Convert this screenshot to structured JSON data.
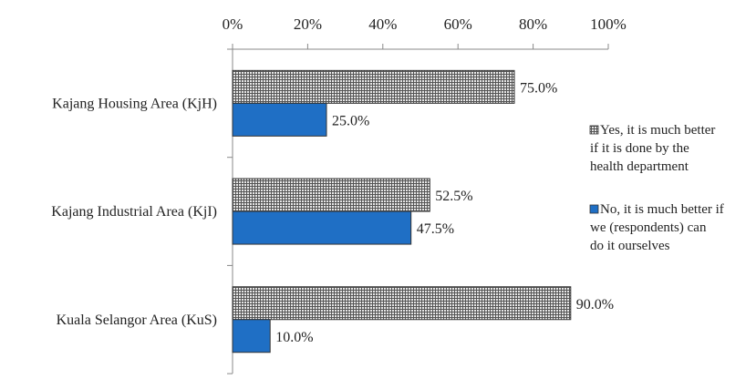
{
  "chart_data": {
    "type": "bar",
    "orientation": "horizontal",
    "categories": [
      "Kajang Housing Area (KjH)",
      "Kajang Industrial Area (KjI)",
      "Kuala Selangor Area (KuS)"
    ],
    "series": [
      {
        "name": "Yes, it is much better if it is done by the health department",
        "legend_lines": [
          "Yes, it is much better",
          "if it is done by the",
          "health department"
        ],
        "values": [
          75.0,
          52.5,
          90.0
        ],
        "value_labels": [
          "75.0%",
          "52.5%",
          "90.0%"
        ],
        "color": "#8c8c8c",
        "pattern": "grid"
      },
      {
        "name": "No, it is much better if we (respondents) can do it ourselves",
        "legend_lines": [
          "No, it is much better if",
          "we (respondents) can",
          "do it ourselves"
        ],
        "values": [
          25.0,
          47.5,
          10.0
        ],
        "value_labels": [
          "25.0%",
          "47.5%",
          "10.0%"
        ],
        "color": "#1f6fc5",
        "pattern": "solid"
      }
    ],
    "xlim": [
      0,
      100
    ],
    "x_ticks": [
      "0%",
      "20%",
      "40%",
      "60%",
      "80%",
      "100%"
    ],
    "x_axis_position": "top",
    "legend_position": "right",
    "grid": false
  }
}
